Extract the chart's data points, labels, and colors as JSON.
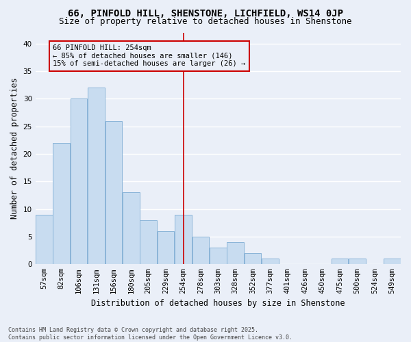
{
  "title": "66, PINFOLD HILL, SHENSTONE, LICHFIELD, WS14 0JP",
  "subtitle": "Size of property relative to detached houses in Shenstone",
  "xlabel": "Distribution of detached houses by size in Shenstone",
  "ylabel": "Number of detached properties",
  "categories": [
    "57sqm",
    "82sqm",
    "106sqm",
    "131sqm",
    "156sqm",
    "180sqm",
    "205sqm",
    "229sqm",
    "254sqm",
    "278sqm",
    "303sqm",
    "328sqm",
    "352sqm",
    "377sqm",
    "401sqm",
    "426sqm",
    "450sqm",
    "475sqm",
    "500sqm",
    "524sqm",
    "549sqm"
  ],
  "values": [
    9,
    22,
    30,
    32,
    26,
    13,
    8,
    6,
    9,
    5,
    3,
    4,
    2,
    1,
    0,
    0,
    0,
    1,
    1,
    0,
    1
  ],
  "bar_color": "#c8dcf0",
  "bar_edge_color": "#8ab4d8",
  "vline_index": 8,
  "vline_color": "#cc0000",
  "annotation_title": "66 PINFOLD HILL: 254sqm",
  "annotation_line1": "← 85% of detached houses are smaller (146)",
  "annotation_line2": "15% of semi-detached houses are larger (26) →",
  "annotation_box_edgecolor": "#cc0000",
  "ylim": [
    0,
    42
  ],
  "yticks": [
    0,
    5,
    10,
    15,
    20,
    25,
    30,
    35,
    40
  ],
  "background_color": "#eaeff8",
  "grid_color": "#ffffff",
  "footer_line1": "Contains HM Land Registry data © Crown copyright and database right 2025.",
  "footer_line2": "Contains public sector information licensed under the Open Government Licence v3.0.",
  "title_fontsize": 10,
  "subtitle_fontsize": 9,
  "xlabel_fontsize": 8.5,
  "ylabel_fontsize": 8.5,
  "tick_fontsize": 7.5,
  "annot_fontsize": 7.5,
  "footer_fontsize": 6.0
}
